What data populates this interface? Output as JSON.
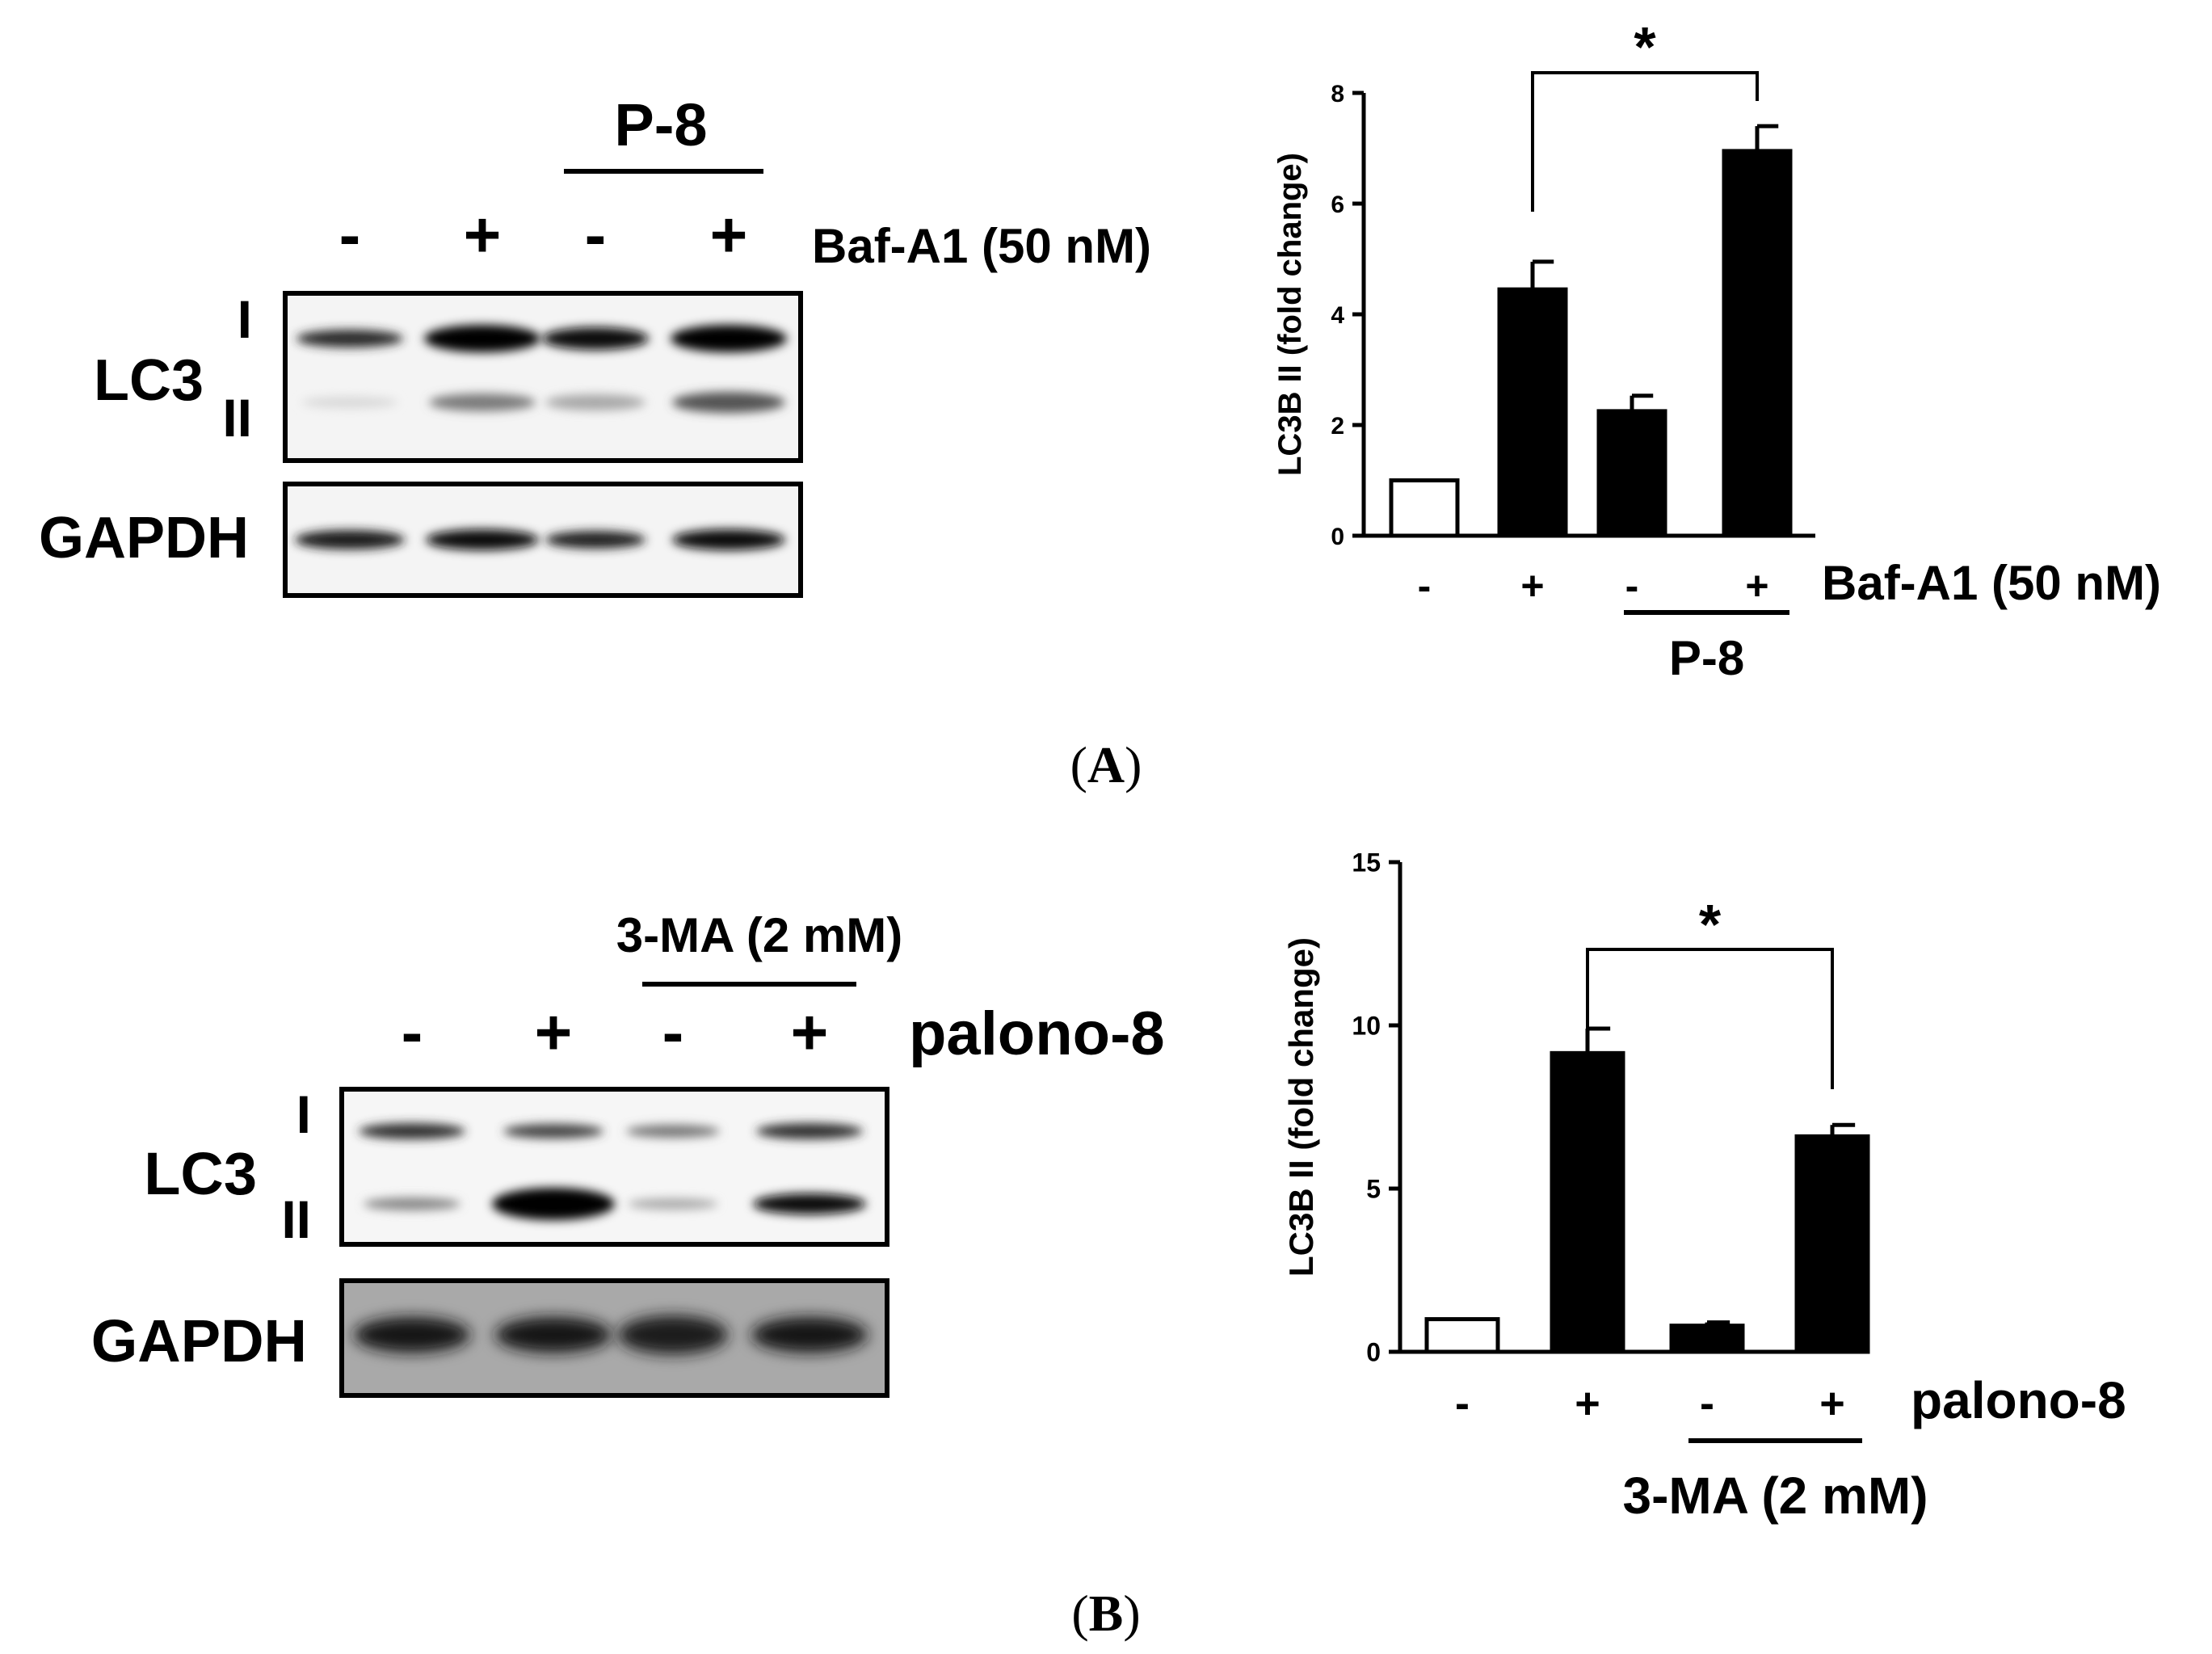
{
  "panel_a": {
    "caption_open": "(",
    "caption_letter": "A",
    "caption_close": ")",
    "blot": {
      "group_label": "P-8",
      "lane_signs": [
        "-",
        "+",
        "-",
        "+"
      ],
      "treatment_label": "Baf-A1 (50 nM)",
      "lc3_label": "LC3",
      "band_i_label": "I",
      "band_ii_label": "II",
      "gapdh_label": "GAPDH"
    }
  },
  "panel_b": {
    "caption_open": "(",
    "caption_letter": "B",
    "caption_close": ")",
    "blot": {
      "group_label": "3-MA (2 mM)",
      "lane_signs": [
        "-",
        "+",
        "-",
        "+"
      ],
      "treatment_label": "palono-8",
      "lc3_label": "LC3",
      "band_i_label": "I",
      "band_ii_label": "II",
      "gapdh_label": "GAPDH"
    }
  },
  "chart_data": [
    {
      "type": "bar",
      "panel": "A",
      "categories": [
        "-",
        "+",
        "-",
        "+"
      ],
      "values": [
        1.0,
        4.45,
        2.25,
        6.95
      ],
      "errors": [
        0,
        0.5,
        0.28,
        0.45
      ],
      "bar_fill": [
        "#ffffff",
        "#000000",
        "#000000",
        "#000000"
      ],
      "ylabel": "LC3B II (fold change)",
      "ylim": [
        0,
        8
      ],
      "yticks": [
        0,
        2,
        4,
        6,
        8
      ],
      "treatment_label": "Baf-A1 (50 nM)",
      "group_label": "P-8",
      "significance": {
        "from": 1,
        "to": 3,
        "label": "*"
      }
    },
    {
      "type": "bar",
      "panel": "B",
      "categories": [
        "-",
        "+",
        "-",
        "+"
      ],
      "values": [
        1.0,
        9.15,
        0.8,
        6.6
      ],
      "errors": [
        0,
        0.75,
        0.1,
        0.35
      ],
      "bar_fill": [
        "#ffffff",
        "#000000",
        "#000000",
        "#000000"
      ],
      "ylabel": "LC3B II (fold change)",
      "ylim": [
        0,
        15
      ],
      "yticks": [
        0,
        5,
        10,
        15
      ],
      "treatment_label": "palono-8",
      "group_label": "3-MA (2 mM)",
      "significance": {
        "from": 1,
        "to": 3,
        "label": "*"
      }
    }
  ]
}
